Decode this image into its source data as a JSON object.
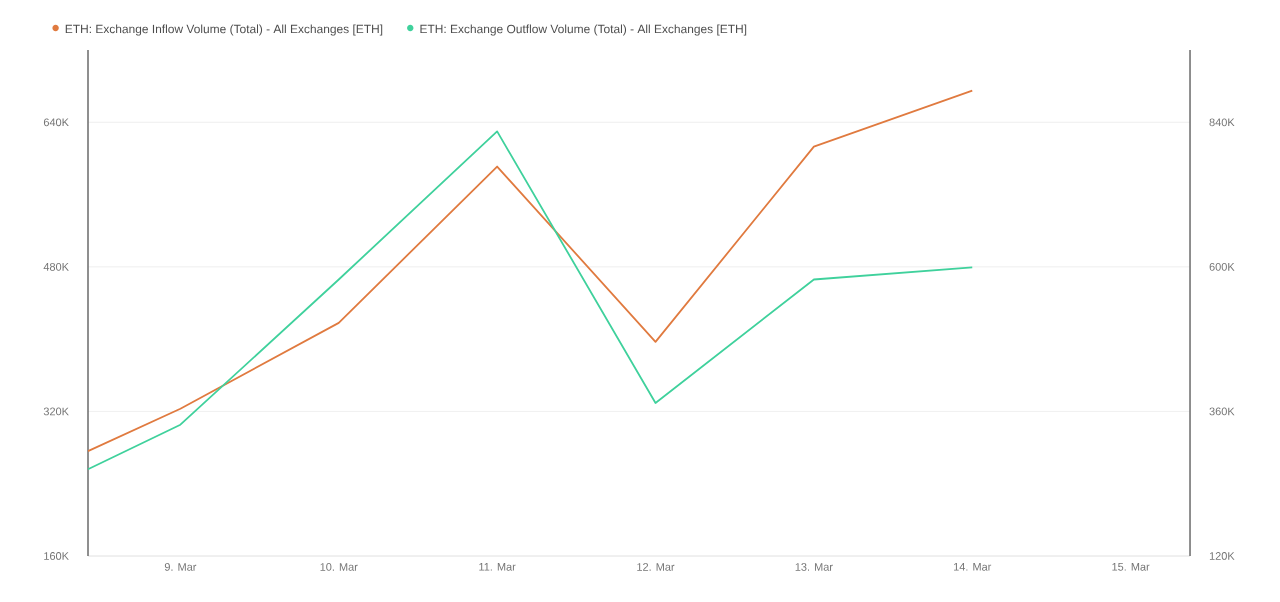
{
  "chart_data": {
    "type": "line",
    "x": [
      "--03-08T10:00",
      "--03-09",
      "--03-10",
      "--03-11",
      "--03-12",
      "--03-13",
      "--03-14"
    ],
    "series": [
      {
        "name": "ETH: Exchange Inflow Volume (Total) - All Exchanges [ETH]",
        "color": "#e07a3f",
        "values": [
          276000,
          323000,
          418000,
          591000,
          397000,
          613000,
          675000
        ]
      },
      {
        "name": "ETH: Exchange Outflow Volume (Total) - All Exchanges [ETH]",
        "color": "#3fd19c",
        "axis": "y2",
        "values": [
          264000,
          338000,
          579000,
          825000,
          374000,
          579000,
          599000
        ]
      }
    ],
    "xlim": [
      "--03-08T10:00",
      "--03-15T09:00"
    ],
    "xticks": [
      {
        "value": "--03-09",
        "label": "9. Mar"
      },
      {
        "value": "--03-10",
        "label": "10. Mar"
      },
      {
        "value": "--03-11",
        "label": "11. Mar"
      },
      {
        "value": "--03-12",
        "label": "12. Mar"
      },
      {
        "value": "--03-13",
        "label": "13. Mar"
      },
      {
        "value": "--03-14",
        "label": "14. Mar"
      },
      {
        "value": "--03-15",
        "label": "15. Mar"
      }
    ],
    "ylim": [
      160000,
      720000
    ],
    "yticks": [
      {
        "value": 160000,
        "label": "160K"
      },
      {
        "value": 320000,
        "label": "320K"
      },
      {
        "value": 480000,
        "label": "480K"
      },
      {
        "value": 640000,
        "label": "640K"
      }
    ],
    "y2lim": [
      120000,
      960000
    ],
    "y2ticks": [
      {
        "value": 120000,
        "label": "120K"
      },
      {
        "value": 360000,
        "label": "360K"
      },
      {
        "value": 600000,
        "label": "600K"
      },
      {
        "value": 840000,
        "label": "840K"
      }
    ],
    "grid": "y",
    "legend": "top left"
  }
}
